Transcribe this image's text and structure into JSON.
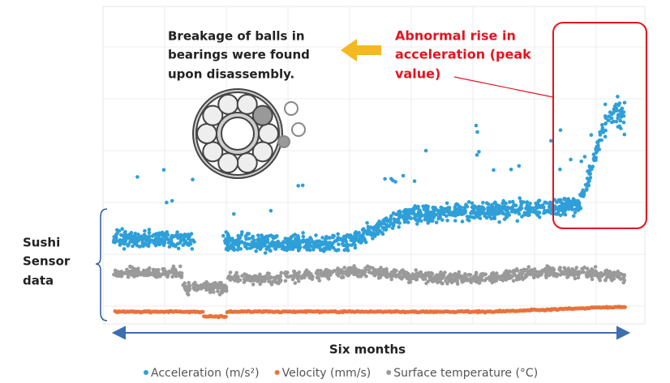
{
  "annotation": {
    "lines": [
      "Breakage of balls in",
      "bearings were found",
      "upon disassembly."
    ]
  },
  "callout": {
    "lines": [
      "Abnormal rise in",
      "acceleration (peak",
      "value)"
    ],
    "color": "#e3141f"
  },
  "side_label": {
    "lines": [
      "Sushi",
      "Sensor",
      "data"
    ]
  },
  "x_label": "Six months",
  "legend": [
    {
      "name": "Acceleration (m/s²)",
      "color": "#2e9fd8"
    },
    {
      "name": "Velocity (mm/s)",
      "color": "#e8733a"
    },
    {
      "name": "Surface temperature (°C)",
      "color": "#9a9a9a"
    }
  ]
}
